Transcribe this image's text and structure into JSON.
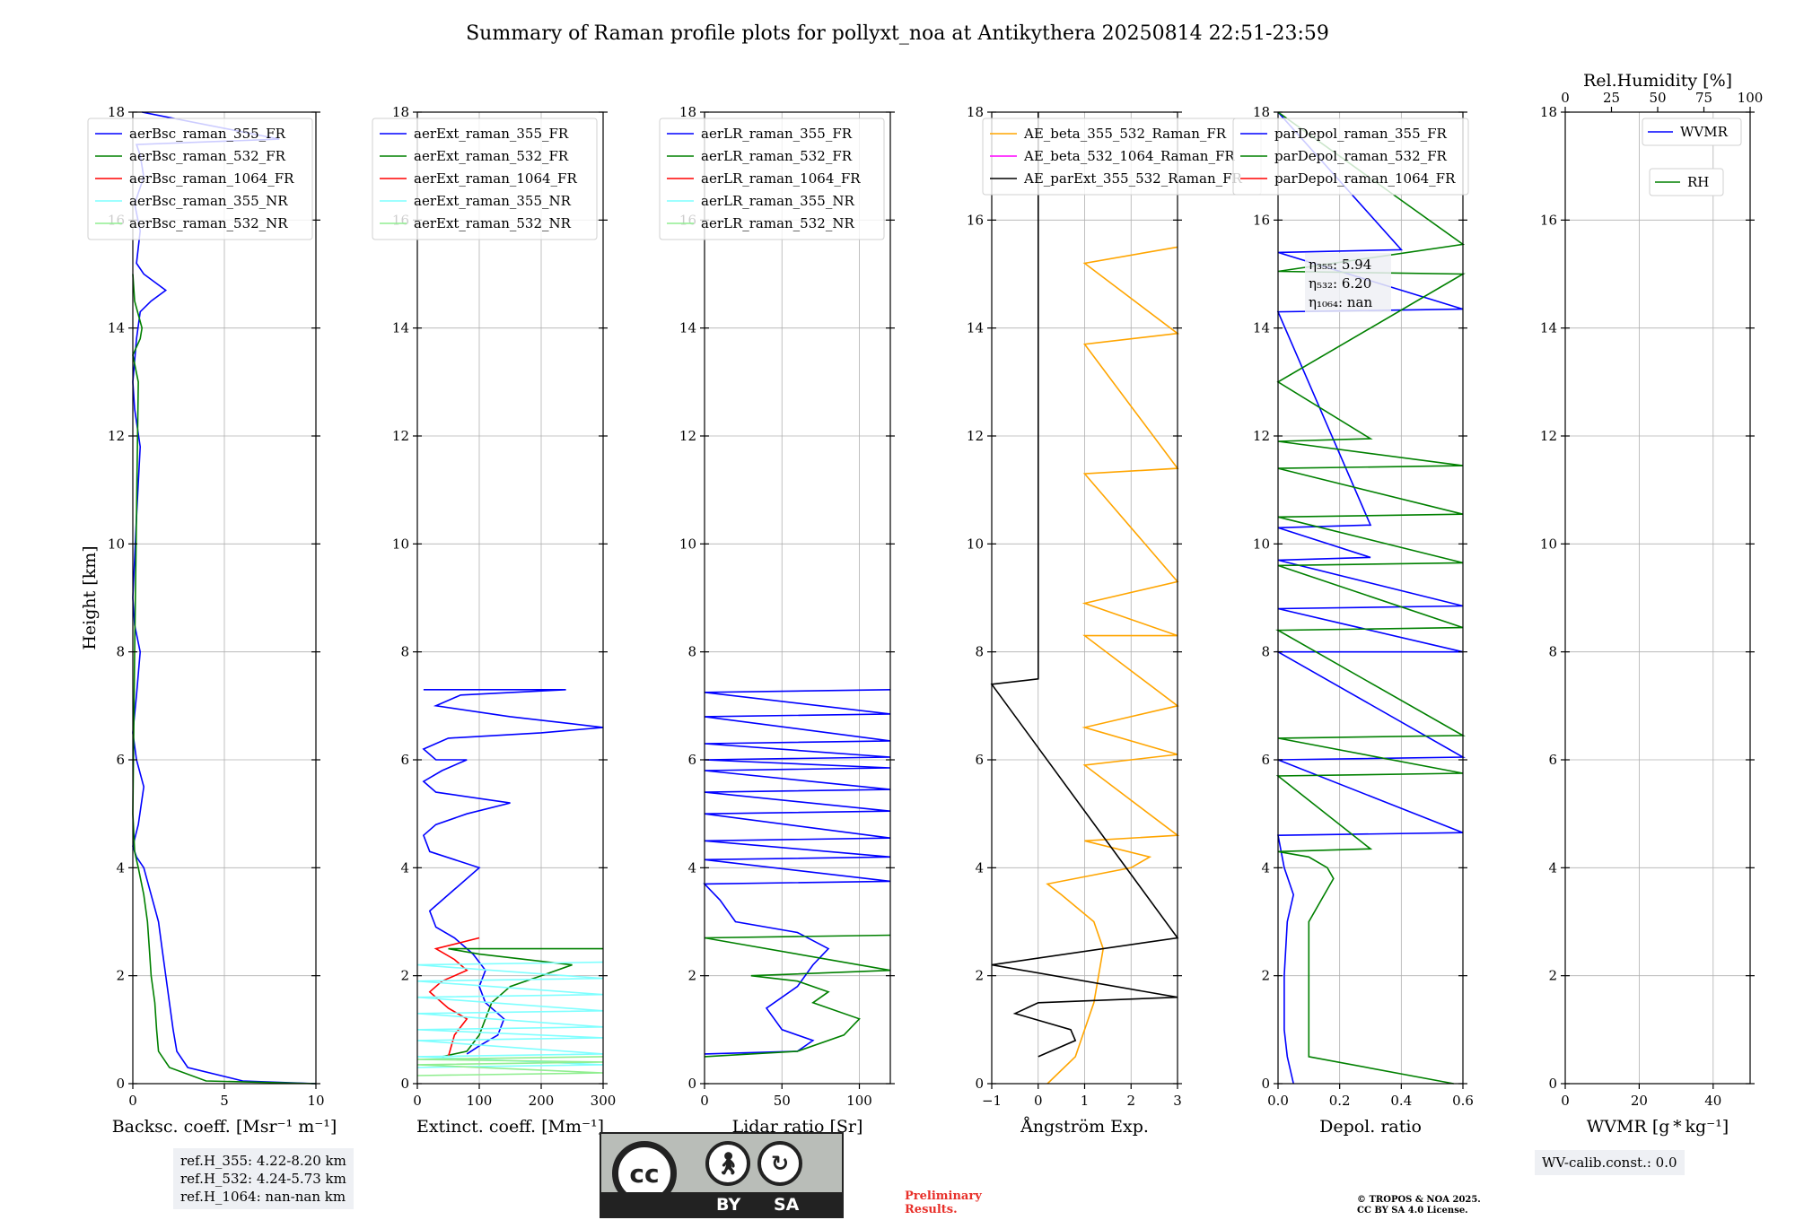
{
  "title": "Summary of Raman profile plots for pollyxt_noa at Antikythera 20250814 22:51-23:59",
  "ref_heights": [
    "ref.H_355: 4.22-8.20 km",
    "ref.H_532: 4.24-5.73 km",
    "ref.H_1064: nan-nan km"
  ],
  "wv_calib": "WV-calib.const.: 0.0",
  "preliminary": [
    "Preliminary",
    "Results."
  ],
  "copyright": [
    "© TROPOS & NOA 2025.",
    "CC BY SA 4.0 License."
  ],
  "cc_logo": {
    "main": "cc",
    "by": "BY",
    "sa": "SA",
    "icons": [
      "person-icon",
      "share-alike-icon"
    ]
  },
  "colors": {
    "c355FR": "#0000ff",
    "c532FR": "#008000",
    "c1064FR": "#ff0000",
    "c355NR": "#7fffff",
    "c532NR": "#90ee90",
    "orange": "#ffa500",
    "magenta": "#ff00ff",
    "black": "#000000"
  },
  "chart_data": [
    {
      "type": "line",
      "xlabel": "Backsc. coeff. [Msr⁻¹ m⁻¹]",
      "ylabel": "Height [km]",
      "xlim": [
        0,
        10
      ],
      "ylim": [
        0,
        18
      ],
      "xticks": [
        "0",
        "5",
        "10"
      ],
      "legend": [
        "aerBsc_raman_355_FR",
        "aerBsc_raman_532_FR",
        "aerBsc_raman_1064_FR",
        "aerBsc_raman_355_NR",
        "aerBsc_raman_532_NR"
      ],
      "series": [
        {
          "name": "aerBsc_raman_355_FR",
          "color": "#0000ff",
          "x": [
            10,
            6,
            3,
            2.4,
            2.2,
            2.0,
            1.8,
            1.6,
            1.4,
            1.0,
            0.6,
            0.2,
            0.0,
            0.3,
            0.6,
            0.2,
            0.0,
            0.2,
            0.4,
            0.1,
            0.0,
            0.2,
            0.4,
            0.1,
            0.0,
            0.2,
            0.4,
            1.0,
            1.8,
            0.6,
            0.2,
            0.4,
            0.1,
            0.6,
            0.4,
            0.2,
            8.0,
            0.5
          ],
          "y": [
            0,
            0.05,
            0.3,
            0.6,
            1.0,
            1.5,
            2.0,
            2.5,
            3.0,
            3.5,
            4.0,
            4.2,
            4.4,
            4.8,
            5.5,
            6.0,
            6.5,
            7.2,
            8.0,
            8.5,
            9.0,
            10.5,
            11.8,
            12.5,
            13.0,
            13.8,
            14.3,
            14.5,
            14.7,
            15.0,
            15.2,
            15.8,
            16.3,
            16.8,
            17.2,
            17.4,
            17.5,
            18.0
          ]
        },
        {
          "name": "aerBsc_raman_532_FR",
          "color": "#008000",
          "x": [
            10,
            4,
            2.0,
            1.4,
            1.3,
            1.2,
            1.0,
            0.9,
            0.8,
            0.6,
            0.3,
            0.1,
            0.0,
            0.1,
            0.3,
            0.0,
            0.4,
            0.5,
            0.1,
            0.0
          ],
          "y": [
            0,
            0.05,
            0.3,
            0.6,
            1.0,
            1.5,
            2.0,
            2.5,
            3.0,
            3.5,
            4.0,
            4.3,
            5.0,
            8.0,
            13.0,
            13.5,
            13.8,
            14.0,
            14.5,
            15.0
          ]
        },
        {
          "name": "aerBsc_raman_1064_FR",
          "color": "#ff0000",
          "x": [],
          "y": []
        },
        {
          "name": "aerBsc_raman_355_NR",
          "color": "#7fffff",
          "x": [],
          "y": []
        },
        {
          "name": "aerBsc_raman_532_NR",
          "color": "#90ee90",
          "x": [],
          "y": []
        }
      ]
    },
    {
      "type": "line",
      "xlabel": "Extinct. coeff. [Mm⁻¹]",
      "xlim": [
        0,
        300
      ],
      "ylim": [
        0,
        18
      ],
      "xticks": [
        "0",
        "100",
        "200",
        "300"
      ],
      "legend": [
        "aerExt_raman_355_FR",
        "aerExt_raman_532_FR",
        "aerExt_raman_1064_FR",
        "aerExt_raman_355_NR",
        "aerExt_raman_532_NR"
      ],
      "series": [
        {
          "name": "aerExt_raman_355_FR",
          "color": "#0000ff",
          "x": [
            80,
            100,
            130,
            140,
            110,
            100,
            110,
            90,
            60,
            30,
            20,
            60,
            100,
            20,
            10,
            30,
            80,
            150,
            30,
            10,
            40,
            80,
            30,
            10,
            50,
            200,
            300,
            150,
            30,
            70,
            240,
            10
          ],
          "y": [
            0.55,
            0.7,
            0.9,
            1.2,
            1.5,
            1.8,
            2.1,
            2.4,
            2.7,
            2.9,
            3.2,
            3.6,
            4.0,
            4.3,
            4.6,
            4.8,
            5.0,
            5.2,
            5.4,
            5.6,
            5.8,
            6.0,
            6.0,
            6.2,
            6.4,
            6.5,
            6.6,
            6.8,
            7.0,
            7.2,
            7.3,
            7.3
          ]
        },
        {
          "name": "aerExt_raman_532_FR",
          "color": "#008000",
          "x": [
            40,
            80,
            100,
            110,
            120,
            150,
            200,
            250,
            100,
            50,
            300
          ],
          "y": [
            0.5,
            0.6,
            0.9,
            1.2,
            1.5,
            1.8,
            2.0,
            2.2,
            2.4,
            2.5,
            2.5
          ]
        },
        {
          "name": "aerExt_raman_1064_FR",
          "color": "#ff0000",
          "x": [
            50,
            60,
            80,
            50,
            20,
            40,
            80,
            60,
            30,
            100
          ],
          "y": [
            0.5,
            0.9,
            1.2,
            1.4,
            1.7,
            1.9,
            2.1,
            2.3,
            2.5,
            2.7
          ]
        },
        {
          "name": "aerExt_raman_355_NR",
          "color": "#7fffff",
          "x": [
            0,
            300,
            0,
            300,
            0,
            300,
            0,
            300,
            0,
            300,
            0,
            300,
            0,
            300,
            0,
            300
          ],
          "y": [
            0.3,
            0.35,
            0.5,
            0.55,
            0.8,
            0.85,
            1.0,
            1.05,
            1.3,
            1.35,
            1.6,
            1.65,
            1.9,
            1.95,
            2.2,
            2.25
          ]
        },
        {
          "name": "aerExt_raman_532_NR",
          "color": "#90ee90",
          "x": [
            0,
            300,
            0,
            300,
            0,
            300
          ],
          "y": [
            0.15,
            0.2,
            0.35,
            0.4,
            0.45,
            0.5
          ]
        }
      ]
    },
    {
      "type": "line",
      "xlabel": "Lidar ratio [Sr]",
      "xlim": [
        0,
        120
      ],
      "ylim": [
        0,
        18
      ],
      "xticks": [
        "0",
        "50",
        "100"
      ],
      "legend": [
        "aerLR_raman_355_FR",
        "aerLR_raman_532_FR",
        "aerLR_raman_1064_FR",
        "aerLR_raman_355_NR",
        "aerLR_raman_532_NR"
      ],
      "series": [
        {
          "name": "aerLR_raman_355_FR",
          "color": "#0000ff",
          "x": [
            0,
            60,
            70,
            50,
            40,
            60,
            70,
            80,
            60,
            20,
            10,
            0,
            120,
            0,
            120,
            0,
            120,
            0,
            120,
            0,
            120,
            0,
            120,
            0,
            120,
            0,
            120,
            0,
            120,
            0,
            120
          ],
          "y": [
            0.55,
            0.6,
            0.8,
            1.0,
            1.4,
            1.8,
            2.2,
            2.5,
            2.8,
            3.0,
            3.4,
            3.7,
            3.75,
            4.15,
            4.2,
            4.5,
            4.55,
            5.0,
            5.05,
            5.4,
            5.45,
            5.8,
            5.85,
            6.0,
            6.05,
            6.3,
            6.35,
            6.8,
            6.85,
            7.25,
            7.3
          ]
        },
        {
          "name": "aerLR_raman_532_FR",
          "color": "#008000",
          "x": [
            0,
            60,
            90,
            100,
            70,
            80,
            60,
            30,
            120,
            0,
            120
          ],
          "y": [
            0.5,
            0.6,
            0.9,
            1.2,
            1.5,
            1.7,
            1.9,
            2.0,
            2.1,
            2.7,
            2.75
          ]
        },
        {
          "name": "aerLR_raman_1064_FR",
          "color": "#ff0000",
          "x": [],
          "y": []
        },
        {
          "name": "aerLR_raman_355_NR",
          "color": "#7fffff",
          "x": [],
          "y": []
        },
        {
          "name": "aerLR_raman_532_NR",
          "color": "#90ee90",
          "x": [],
          "y": []
        }
      ]
    },
    {
      "type": "line",
      "xlabel": "Ångström Exp.",
      "xlim": [
        -1,
        3
      ],
      "ylim": [
        0,
        18
      ],
      "xticks": [
        "−1",
        "0",
        "1",
        "2",
        "3"
      ],
      "legend": [
        "AE_beta_355_532_Raman_FR",
        "AE_beta_532_1064_Raman_FR",
        "AE_parExt_355_532_Raman_FR"
      ],
      "series": [
        {
          "name": "AE_beta_355_532_Raman_FR",
          "color": "#ffa500",
          "x": [
            0.2,
            0.8,
            1.0,
            1.2,
            1.3,
            1.4,
            1.2,
            0.5,
            0.2,
            2.0,
            2.4,
            1.0,
            3.0,
            1.0,
            3.0,
            1.0,
            3.0,
            1.0,
            3.0,
            1.0,
            3.0,
            1.0,
            3.0,
            1.0,
            3.0,
            1.0,
            3.0
          ],
          "y": [
            0.0,
            0.5,
            1.0,
            1.5,
            2.0,
            2.5,
            3.0,
            3.5,
            3.7,
            4.0,
            4.2,
            4.5,
            4.6,
            5.9,
            6.1,
            6.6,
            7.0,
            8.3,
            8.3,
            8.9,
            9.3,
            11.3,
            11.4,
            13.7,
            13.9,
            15.2,
            15.5
          ]
        },
        {
          "name": "AE_beta_532_1064_Raman_FR",
          "color": "#ff00ff",
          "x": [],
          "y": []
        },
        {
          "name": "AE_parExt_355_532_Raman_FR",
          "color": "#000000",
          "x": [
            0.0,
            0.8,
            0.7,
            -0.5,
            0.0,
            3.0,
            -1.0,
            3.0,
            -1.0,
            0.0,
            0.0,
            0.0
          ],
          "y": [
            0.5,
            0.8,
            1.0,
            1.3,
            1.5,
            1.6,
            2.2,
            2.7,
            7.4,
            7.5,
            10.0,
            18.0
          ]
        }
      ]
    },
    {
      "type": "line",
      "xlabel": "Depol. ratio",
      "xlim": [
        0.0,
        0.6
      ],
      "ylim": [
        0,
        18
      ],
      "xticks": [
        "0.0",
        "0.2",
        "0.4",
        "0.6"
      ],
      "legend": [
        "parDepol_raman_355_FR",
        "parDepol_raman_532_FR",
        "parDepol_raman_1064_FR"
      ],
      "annotation": [
        "η₃₅₅: 5.94",
        "η₅₃₂: 6.20",
        "η₁₀₆₄: nan"
      ],
      "series": [
        {
          "name": "parDepol_raman_355_FR",
          "color": "#0000ff",
          "x": [
            0.05,
            0.03,
            0.02,
            0.02,
            0.03,
            0.05,
            0.02,
            0.0,
            0.6,
            0.0,
            0.6,
            0.0,
            0.6,
            0.0,
            0.6,
            0.0,
            0.3,
            0.0,
            0.3,
            0.0,
            0.6,
            0.0,
            0.4,
            0.0
          ],
          "y": [
            0.0,
            0.5,
            1.0,
            2.0,
            3.0,
            3.5,
            4.0,
            4.6,
            4.65,
            6.0,
            6.05,
            8.0,
            8.0,
            8.8,
            8.85,
            9.7,
            9.75,
            10.3,
            10.35,
            14.3,
            14.35,
            15.4,
            15.45,
            18.0
          ]
        },
        {
          "name": "parDepol_raman_532_FR",
          "color": "#008000",
          "x": [
            0.57,
            0.1,
            0.1,
            0.1,
            0.1,
            0.15,
            0.18,
            0.16,
            0.1,
            0.0,
            0.3,
            0.0,
            0.6,
            0.0,
            0.6,
            0.0,
            0.6,
            0.0,
            0.6,
            0.0,
            0.6,
            0.0,
            0.6,
            0.0,
            0.3,
            0.0,
            0.6,
            0.0,
            0.6,
            0.0
          ],
          "y": [
            0.0,
            0.5,
            1.0,
            2.0,
            3.0,
            3.5,
            3.8,
            4.0,
            4.2,
            4.3,
            4.35,
            5.7,
            5.75,
            6.4,
            6.45,
            8.4,
            8.45,
            9.6,
            9.65,
            10.5,
            10.55,
            11.4,
            11.45,
            11.9,
            11.95,
            13.0,
            15.0,
            15.05,
            15.55,
            18.0
          ]
        },
        {
          "name": "parDepol_raman_1064_FR",
          "color": "#ff0000",
          "x": [],
          "y": []
        }
      ]
    },
    {
      "type": "line",
      "xlabel": "WVMR [g * kg⁻¹]",
      "x2label": "Rel.Humidity [%]",
      "xlim": [
        0,
        50
      ],
      "ylim": [
        0,
        18
      ],
      "xticks": [
        "0",
        "20",
        "40"
      ],
      "x2lim": [
        0,
        100
      ],
      "x2ticks": [
        "0",
        "25",
        "50",
        "75",
        "100"
      ],
      "legend": [
        "WVMR",
        "RH"
      ],
      "series": [
        {
          "name": "WVMR",
          "color": "#0000ff",
          "x": [],
          "y": []
        },
        {
          "name": "RH",
          "color": "#008000",
          "x": [],
          "y": []
        }
      ]
    }
  ]
}
